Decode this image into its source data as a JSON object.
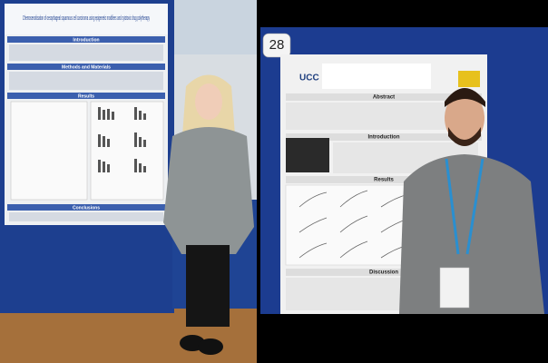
{
  "left_photo": {
    "poster": {
      "title": "Chemosensitisation of oesophageal squamous cell carcinoma using epigenetic modifiers and cytotoxic drug polytherapy",
      "sections": [
        "Introduction",
        "Methods and Materials",
        "Results",
        "Conclusions"
      ]
    }
  },
  "right_photo": {
    "sign": "28",
    "poster": {
      "logo": "UCC",
      "sections": [
        "Abstract",
        "Introduction",
        "Results",
        "Discussion"
      ]
    }
  }
}
